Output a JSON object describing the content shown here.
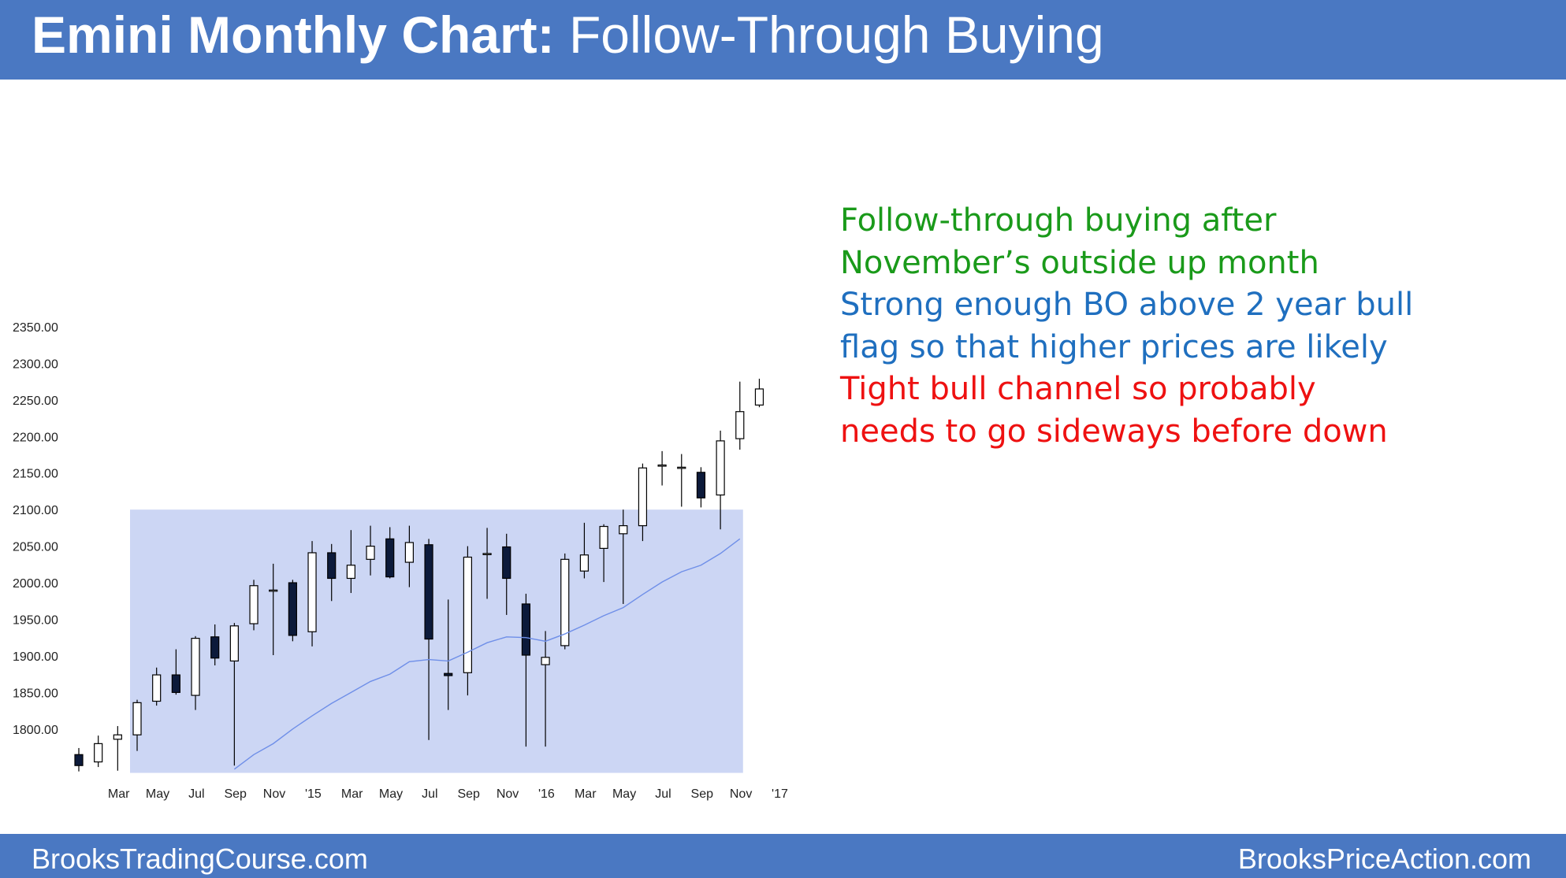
{
  "header": {
    "title_bold": "Emini Monthly Chart:",
    "title_rest": " Follow-Through Buying",
    "background": "#4a78c2"
  },
  "notes": [
    {
      "text": "Follow-through buying after",
      "color": "#1a9a1a"
    },
    {
      "text": "November’s outside up month",
      "color": "#1a9a1a"
    },
    {
      "text": "Strong enough BO above 2 year bull",
      "color": "#1f6fbf"
    },
    {
      "text": "flag so that higher prices are likely",
      "color": "#1f6fbf"
    },
    {
      "text": "Tight bull channel so probably",
      "color": "#ee1111"
    },
    {
      "text": "needs to go sideways before down",
      "color": "#ee1111"
    }
  ],
  "footer": {
    "left": "BrooksTradingCourse.com",
    "right": "BrooksPriceAction.com"
  },
  "chart_data": {
    "type": "candlestick",
    "title": "",
    "y_tick_labels": [
      "2350.00",
      "2300.00",
      "2250.00",
      "2200.00",
      "2150.00",
      "2100.00",
      "2050.00",
      "2000.00",
      "1950.00",
      "1900.00",
      "1850.00",
      "1800.00"
    ],
    "x_tick_labels": [
      "Mar",
      "May",
      "Jul",
      "Sep",
      "Nov",
      "'15",
      "Mar",
      "May",
      "Jul",
      "Sep",
      "Nov",
      "'16",
      "Mar",
      "May",
      "Jul",
      "Sep",
      "Nov",
      "'17"
    ],
    "ylim": [
      1740,
      2370
    ],
    "grid": false,
    "shaded_range": {
      "x_start": "May 2014",
      "x_end": "Dec 2016",
      "y_low": 1740,
      "y_high": 2100,
      "color": "#ccd6f4"
    },
    "candles": [
      {
        "date": "2014-02",
        "open": 1765,
        "high": 1774,
        "low": 1742,
        "close": 1750
      },
      {
        "date": "2014-03",
        "open": 1755,
        "high": 1791,
        "low": 1748,
        "close": 1780
      },
      {
        "date": "2014-04",
        "open": 1786,
        "high": 1804,
        "low": 1743,
        "close": 1792
      },
      {
        "date": "2014-05",
        "open": 1792,
        "high": 1840,
        "low": 1770,
        "close": 1836
      },
      {
        "date": "2014-06",
        "open": 1838,
        "high": 1884,
        "low": 1832,
        "close": 1874
      },
      {
        "date": "2014-07",
        "open": 1874,
        "high": 1909,
        "low": 1847,
        "close": 1850
      },
      {
        "date": "2014-08",
        "open": 1846,
        "high": 1927,
        "low": 1826,
        "close": 1924
      },
      {
        "date": "2014-09",
        "open": 1926,
        "high": 1943,
        "low": 1887,
        "close": 1897
      },
      {
        "date": "2014-10",
        "open": 1893,
        "high": 1945,
        "low": 1750,
        "close": 1941
      },
      {
        "date": "2014-11",
        "open": 1944,
        "high": 2004,
        "low": 1935,
        "close": 1996
      },
      {
        "date": "2014-12",
        "open": 1990,
        "high": 2026,
        "low": 1901,
        "close": 1990
      },
      {
        "date": "2015-01",
        "open": 2000,
        "high": 2004,
        "low": 1920,
        "close": 1928
      },
      {
        "date": "2015-02",
        "open": 1933,
        "high": 2057,
        "low": 1913,
        "close": 2041
      },
      {
        "date": "2015-03",
        "open": 2041,
        "high": 2053,
        "low": 1975,
        "close": 2006
      },
      {
        "date": "2015-04",
        "open": 2006,
        "high": 2072,
        "low": 1986,
        "close": 2024
      },
      {
        "date": "2015-05",
        "open": 2032,
        "high": 2078,
        "low": 2010,
        "close": 2050
      },
      {
        "date": "2015-06",
        "open": 2060,
        "high": 2076,
        "low": 2006,
        "close": 2008
      },
      {
        "date": "2015-07",
        "open": 2028,
        "high": 2078,
        "low": 1994,
        "close": 2055
      },
      {
        "date": "2015-08",
        "open": 2052,
        "high": 2060,
        "low": 1785,
        "close": 1923
      },
      {
        "date": "2015-09",
        "open": 1876,
        "high": 1977,
        "low": 1826,
        "close": 1873
      },
      {
        "date": "2015-10",
        "open": 1877,
        "high": 2050,
        "low": 1846,
        "close": 2035
      },
      {
        "date": "2015-11",
        "open": 2040,
        "high": 2075,
        "low": 1978,
        "close": 2040
      },
      {
        "date": "2015-12",
        "open": 2049,
        "high": 2067,
        "low": 1956,
        "close": 2006
      },
      {
        "date": "2016-01",
        "open": 1971,
        "high": 1985,
        "low": 1776,
        "close": 1901
      },
      {
        "date": "2016-02",
        "open": 1888,
        "high": 1934,
        "low": 1776,
        "close": 1898
      },
      {
        "date": "2016-03",
        "open": 1914,
        "high": 2040,
        "low": 1909,
        "close": 2032
      },
      {
        "date": "2016-04",
        "open": 2016,
        "high": 2082,
        "low": 2006,
        "close": 2038
      },
      {
        "date": "2016-05",
        "open": 2047,
        "high": 2080,
        "low": 2001,
        "close": 2077
      },
      {
        "date": "2016-06",
        "open": 2067,
        "high": 2100,
        "low": 1971,
        "close": 2078
      },
      {
        "date": "2016-07",
        "open": 2078,
        "high": 2163,
        "low": 2057,
        "close": 2157
      },
      {
        "date": "2016-08",
        "open": 2160,
        "high": 2180,
        "low": 2133,
        "close": 2161
      },
      {
        "date": "2016-09",
        "open": 2158,
        "high": 2176,
        "low": 2104,
        "close": 2158
      },
      {
        "date": "2016-10",
        "open": 2151,
        "high": 2158,
        "low": 2103,
        "close": 2116
      },
      {
        "date": "2016-11",
        "open": 2120,
        "high": 2208,
        "low": 2073,
        "close": 2194
      },
      {
        "date": "2016-12",
        "open": 2197,
        "high": 2275,
        "low": 2182,
        "close": 2234
      },
      {
        "date": "2017-01",
        "open": 2243,
        "high": 2279,
        "low": 2240,
        "close": 2265
      }
    ],
    "moving_average": [
      {
        "date": "2014-10",
        "value": 1745
      },
      {
        "date": "2014-11",
        "value": 1765
      },
      {
        "date": "2014-12",
        "value": 1780
      },
      {
        "date": "2015-01",
        "value": 1800
      },
      {
        "date": "2015-02",
        "value": 1818
      },
      {
        "date": "2015-03",
        "value": 1835
      },
      {
        "date": "2015-04",
        "value": 1850
      },
      {
        "date": "2015-05",
        "value": 1865
      },
      {
        "date": "2015-06",
        "value": 1875
      },
      {
        "date": "2015-07",
        "value": 1892
      },
      {
        "date": "2015-08",
        "value": 1895
      },
      {
        "date": "2015-09",
        "value": 1893
      },
      {
        "date": "2015-10",
        "value": 1905
      },
      {
        "date": "2015-11",
        "value": 1918
      },
      {
        "date": "2015-12",
        "value": 1926
      },
      {
        "date": "2016-01",
        "value": 1925
      },
      {
        "date": "2016-02",
        "value": 1920
      },
      {
        "date": "2016-03",
        "value": 1930
      },
      {
        "date": "2016-04",
        "value": 1942
      },
      {
        "date": "2016-05",
        "value": 1955
      },
      {
        "date": "2016-06",
        "value": 1966
      },
      {
        "date": "2016-07",
        "value": 1984
      },
      {
        "date": "2016-08",
        "value": 2001
      },
      {
        "date": "2016-09",
        "value": 2015
      },
      {
        "date": "2016-10",
        "value": 2024
      },
      {
        "date": "2016-11",
        "value": 2040
      },
      {
        "date": "2016-12",
        "value": 2060
      }
    ],
    "colors": {
      "bull_body": "#ffffff",
      "bear_body": "#0c1a3a",
      "wick": "#000000",
      "moving_average": "#6f8fe8"
    }
  }
}
